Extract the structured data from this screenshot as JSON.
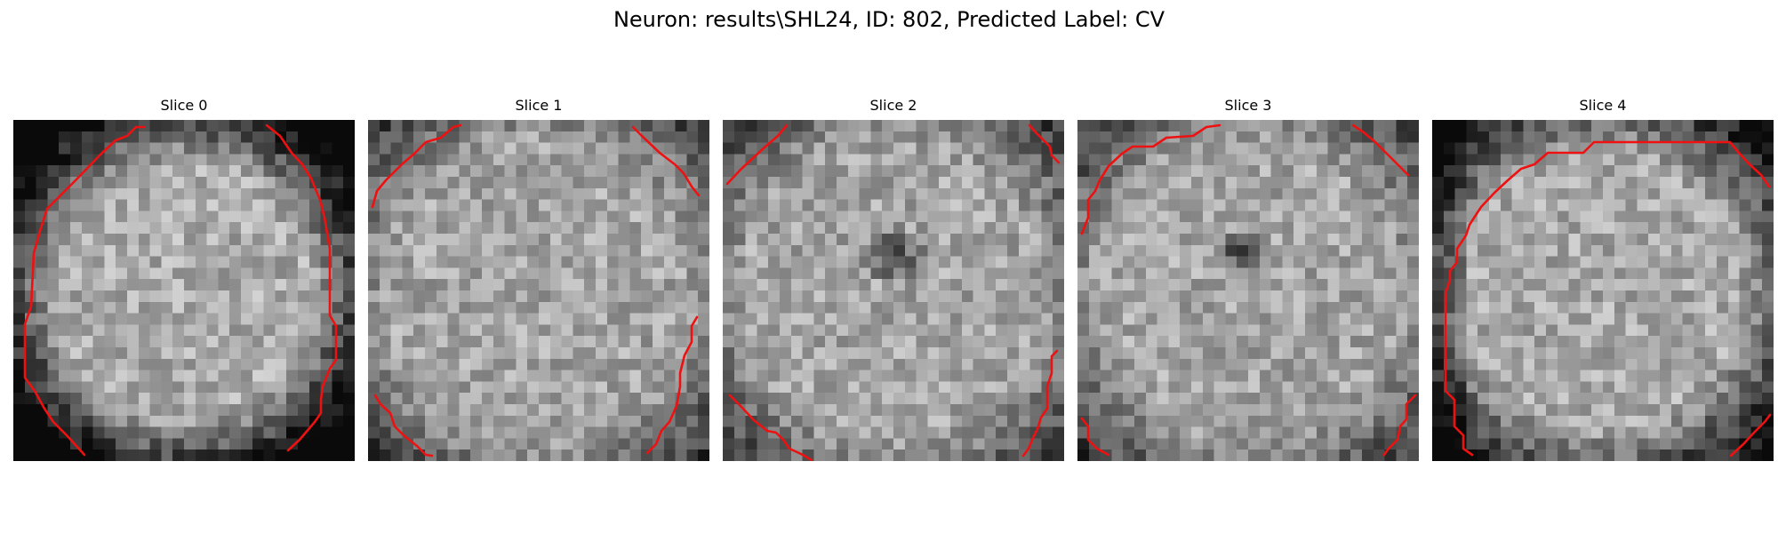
{
  "figure": {
    "title": "Neuron: results\\SHL24, ID: 802, Predicted Label: CV",
    "contour_color": "#ee1111"
  },
  "slices": [
    {
      "title": "Slice 0",
      "label": "slice-0"
    },
    {
      "title": "Slice 1",
      "label": "slice-1"
    },
    {
      "title": "Slice 2",
      "label": "slice-2"
    },
    {
      "title": "Slice 3",
      "label": "slice-3"
    },
    {
      "title": "Slice 4",
      "label": "slice-4"
    }
  ]
}
